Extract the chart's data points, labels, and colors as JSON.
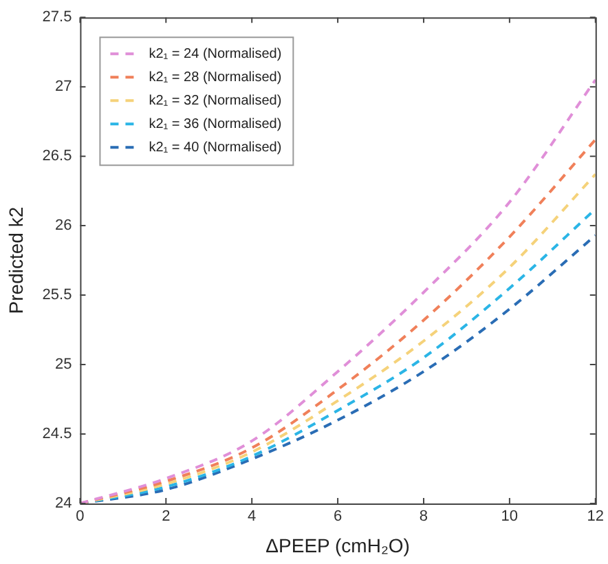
{
  "chart_data": {
    "type": "line",
    "xlabel": "ΔPEEP (cmH₂O)",
    "ylabel": "Predicted k2",
    "x": [
      0,
      2,
      4,
      6,
      8,
      10,
      12
    ],
    "series": [
      {
        "name": "k2₁ = 24 (Normalised)",
        "color": "#e08fd8",
        "values": [
          24,
          24.18,
          24.45,
          24.95,
          25.52,
          26.17,
          27.05
        ]
      },
      {
        "name": "k2₁ = 28 (Normalised)",
        "color": "#f0805a",
        "values": [
          24,
          24.16,
          24.4,
          24.82,
          25.32,
          25.92,
          26.62
        ]
      },
      {
        "name": "k2₁ = 32 (Normalised)",
        "color": "#f5d27a",
        "values": [
          24,
          24.14,
          24.37,
          24.74,
          25.17,
          25.7,
          26.37
        ]
      },
      {
        "name": "k2₁ = 36 (Normalised)",
        "color": "#2bb5e6",
        "values": [
          24,
          24.12,
          24.34,
          24.67,
          25.05,
          25.55,
          26.12
        ]
      },
      {
        "name": "k2₁ = 40 (Normalised)",
        "color": "#2a6db5",
        "values": [
          24,
          24.1,
          24.32,
          24.6,
          24.95,
          25.4,
          25.93
        ]
      }
    ],
    "xlim": [
      0,
      12
    ],
    "xticks": [
      0,
      2,
      4,
      6,
      8,
      10,
      12
    ],
    "ylim": [
      24,
      27.5
    ],
    "yticks": [
      24,
      24.5,
      25,
      25.5,
      26,
      26.5,
      27,
      27.5
    ],
    "grid": false,
    "legend": "top left",
    "line_style": "dashed",
    "marker": "none"
  }
}
